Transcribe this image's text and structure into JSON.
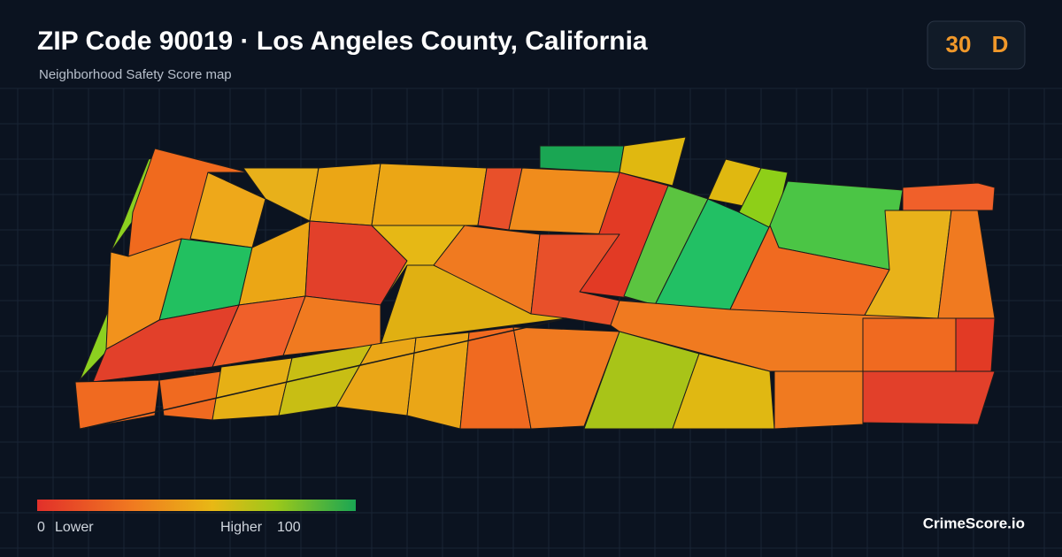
{
  "header": {
    "title": "ZIP Code 90019 · Los Angeles County, California",
    "subtitle": "Neighborhood Safety Score map"
  },
  "badge": {
    "score": 30,
    "grade": "D"
  },
  "legend": {
    "min": 0,
    "min_label": "Lower",
    "max_label": "Higher",
    "max": 100
  },
  "footer": {
    "brand": "CrimeScore.io"
  }
}
